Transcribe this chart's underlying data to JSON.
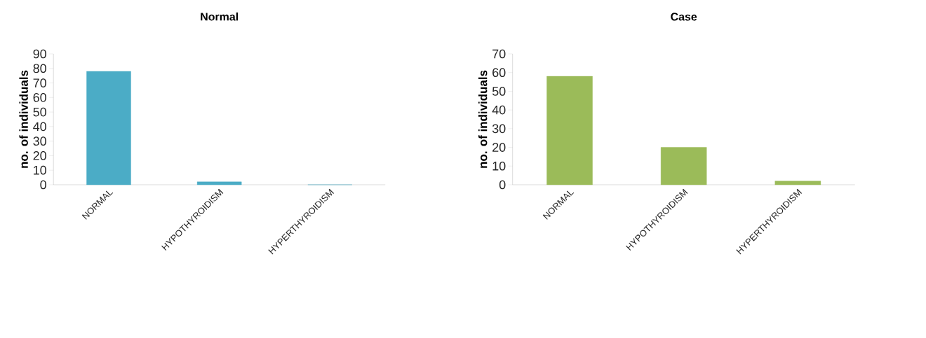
{
  "chart_data": [
    {
      "type": "bar",
      "title": "Normal",
      "ylabel": "no. of individuals",
      "categories": [
        "NORMAL",
        "HYPOTHYROIDISM",
        "HYPERTHYROIDISM"
      ],
      "values": [
        78,
        2,
        0
      ],
      "color": "#4bacc6",
      "ylim": [
        0,
        90
      ],
      "yticks": [
        0,
        10,
        20,
        30,
        40,
        50,
        60,
        70,
        80,
        90
      ]
    },
    {
      "type": "bar",
      "title": "Case",
      "ylabel": "no. of individuals",
      "categories": [
        "NORMAL",
        "HYPOTHYROIDISM",
        "HYPERTHYROIDISM"
      ],
      "values": [
        58,
        20,
        2
      ],
      "color": "#9bbb59",
      "ylim": [
        0,
        70
      ],
      "yticks": [
        0,
        10,
        20,
        30,
        40,
        50,
        60,
        70
      ]
    }
  ]
}
